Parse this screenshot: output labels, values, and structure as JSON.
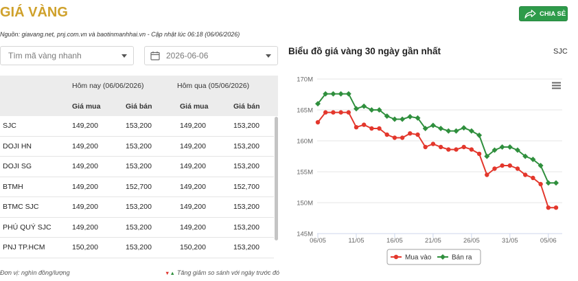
{
  "header": {
    "title": "GIÁ VÀNG",
    "share_label": "CHIA SẺ"
  },
  "source_line": "Nguồn: giavang.net, pnj.com.vn và baotinmanhhai.vn - Cập nhật lúc 06:18 (06/06/2026)",
  "filters": {
    "search_placeholder": "Tìm mã vàng nhanh",
    "date_value": "2026-06-06"
  },
  "table": {
    "today_header": "Hôm nay (06/06/2026)",
    "yesterday_header": "Hôm qua (05/06/2026)",
    "columns": [
      "Giá mua",
      "Giá bán",
      "Giá mua",
      "Giá bán"
    ],
    "rows": [
      {
        "name": "SJC",
        "today_buy": "149,200",
        "today_sell": "153,200",
        "yesterday_buy": "149,200",
        "yesterday_sell": "153,200"
      },
      {
        "name": "DOJI HN",
        "today_buy": "149,200",
        "today_sell": "153,200",
        "yesterday_buy": "149,200",
        "yesterday_sell": "153,200"
      },
      {
        "name": "DOJI SG",
        "today_buy": "149,200",
        "today_sell": "153,200",
        "yesterday_buy": "149,200",
        "yesterday_sell": "153,200"
      },
      {
        "name": "BTMH",
        "today_buy": "149,200",
        "today_sell": "152,700",
        "yesterday_buy": "149,200",
        "yesterday_sell": "152,700"
      },
      {
        "name": "BTMC SJC",
        "today_buy": "149,200",
        "today_sell": "153,200",
        "yesterday_buy": "149,200",
        "yesterday_sell": "153,200"
      },
      {
        "name": "PHÚ QUÝ SJC",
        "today_buy": "149,200",
        "today_sell": "153,200",
        "yesterday_buy": "149,200",
        "yesterday_sell": "153,200"
      },
      {
        "name": "PNJ TP.HCM",
        "today_buy": "150,200",
        "today_sell": "153,200",
        "yesterday_buy": "150,200",
        "yesterday_sell": "153,200"
      }
    ]
  },
  "footer": {
    "unit_note": "Đơn vị: nghìn đồng/lượng",
    "down_arrow": "▼",
    "up_arrow": "▲",
    "change_note": "Tăng giảm so sánh với ngày trước đó"
  },
  "chart_panel": {
    "selected_code": "SJC"
  },
  "colors": {
    "title_gold": "#cfa12b",
    "share_button_green": "#2e9b4a",
    "down_arrow_red": "#e0342c",
    "up_arrow_green": "#2f8f3d"
  },
  "icons": {
    "share": "share-icon",
    "calendar": "calendar-icon",
    "dropdown": "chevron-down-icon",
    "chart_menu": "hamburger-menu-icon"
  },
  "chart_data": {
    "type": "line",
    "title": "Biểu đồ giá vàng 30 ngày gần nhất",
    "x": [
      "06/05",
      "07/05",
      "08/05",
      "09/05",
      "10/05",
      "11/05",
      "12/05",
      "13/05",
      "14/05",
      "15/05",
      "16/05",
      "17/05",
      "18/05",
      "19/05",
      "20/05",
      "21/05",
      "22/05",
      "23/05",
      "24/05",
      "25/05",
      "26/05",
      "27/05",
      "28/05",
      "29/05",
      "30/05",
      "31/05",
      "01/06",
      "02/06",
      "03/06",
      "04/06",
      "05/06",
      "06/06"
    ],
    "x_tick_labels": [
      "06/05",
      "11/05",
      "16/05",
      "21/05",
      "26/05",
      "31/05",
      "05/06"
    ],
    "y_ticks": [
      145,
      150,
      155,
      160,
      165,
      170
    ],
    "y_tick_labels": [
      "145M",
      "150M",
      "155M",
      "160M",
      "165M",
      "170M"
    ],
    "ylim": [
      145,
      170
    ],
    "grid": true,
    "legend": "bottom-center",
    "series": [
      {
        "name": "Mua vào",
        "color": "#e3372c",
        "marker": "circle",
        "values": [
          163.0,
          164.6,
          164.6,
          164.6,
          164.6,
          162.2,
          162.6,
          162.0,
          162.0,
          161.0,
          160.5,
          160.5,
          161.2,
          161.0,
          159.0,
          159.5,
          159.0,
          158.6,
          158.6,
          159.0,
          158.6,
          157.9,
          154.5,
          155.5,
          156.0,
          156.0,
          155.5,
          154.5,
          154.0,
          153.0,
          149.2,
          149.2
        ]
      },
      {
        "name": "Bán ra",
        "color": "#2f8f3d",
        "marker": "diamond",
        "values": [
          166.0,
          167.6,
          167.6,
          167.6,
          167.6,
          165.2,
          165.6,
          165.0,
          165.0,
          164.0,
          163.5,
          163.5,
          163.9,
          163.7,
          162.0,
          162.5,
          162.0,
          161.6,
          161.6,
          162.1,
          161.6,
          160.9,
          157.5,
          158.5,
          159.0,
          159.0,
          158.5,
          157.5,
          157.0,
          156.0,
          153.2,
          153.2
        ]
      }
    ]
  }
}
